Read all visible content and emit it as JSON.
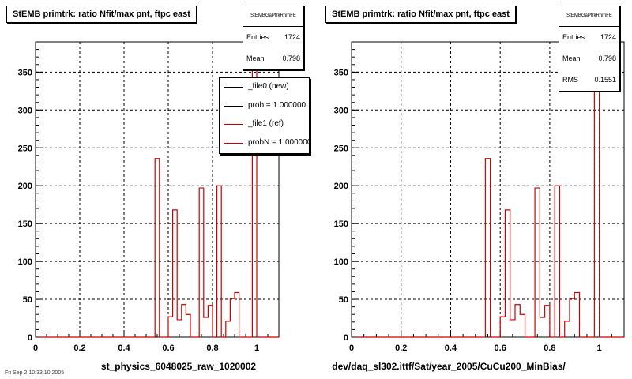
{
  "chart_data": [
    {
      "type": "bar",
      "title": "StEMB primtrk: ratio Nfit/max pnt, ftpc east",
      "xlabel": "st_physics_6048025_raw_1020002",
      "ylabel": "",
      "xlim": [
        0,
        1.1
      ],
      "ylim": [
        0,
        390
      ],
      "x_ticks": [
        "0",
        "0.2",
        "0.4",
        "0.6",
        "0.8",
        "1"
      ],
      "y_ticks": [
        "0",
        "50",
        "100",
        "150",
        "200",
        "250",
        "300",
        "350"
      ],
      "grid": true,
      "bin_width": 0.02,
      "series": [
        {
          "name": "_file1 (ref)",
          "color": "#cc0000",
          "x": [
            0.55,
            0.57,
            0.59,
            0.61,
            0.63,
            0.65,
            0.67,
            0.69,
            0.71,
            0.73,
            0.75,
            0.77,
            0.79,
            0.81,
            0.83,
            0.85,
            0.87,
            0.89,
            0.91,
            0.93,
            0.95,
            0.97,
            0.99
          ],
          "values": [
            236,
            0,
            0,
            27,
            168,
            23,
            43,
            30,
            0,
            0,
            197,
            26,
            42,
            0,
            200,
            0,
            21,
            51,
            59,
            0,
            0,
            0,
            370
          ]
        }
      ],
      "stats": {
        "name": "StEMBGaPtrkRnmFE",
        "rows": [
          {
            "label": "Entries",
            "value": "1724"
          },
          {
            "label": "Mean",
            "value": "0.798"
          }
        ]
      },
      "legend": [
        {
          "label": "_file0 (new)",
          "color": "#000000"
        },
        {
          "label": "prob = 1.000000",
          "color": "#000000"
        },
        {
          "label": "_file1 (ref)",
          "color": "#cc0000"
        },
        {
          "label": "probN = 1.000000",
          "color": "#cc0000"
        }
      ]
    },
    {
      "type": "bar",
      "title": "StEMB primtrk: ratio Nfit/max pnt, ftpc east",
      "xlabel": "dev/daq_sl302.ittf/Sat/year_2005/CuCu200_MinBias/",
      "ylabel": "",
      "xlim": [
        0,
        1.1
      ],
      "ylim": [
        0,
        390
      ],
      "x_ticks": [
        "0",
        "0.2",
        "0.4",
        "0.6",
        "0.8",
        "1"
      ],
      "y_ticks": [
        "0",
        "50",
        "100",
        "150",
        "200",
        "250",
        "300",
        "350"
      ],
      "grid": true,
      "bin_width": 0.02,
      "series": [
        {
          "name": "",
          "color": "#cc0000",
          "x": [
            0.55,
            0.57,
            0.59,
            0.61,
            0.63,
            0.65,
            0.67,
            0.69,
            0.71,
            0.73,
            0.75,
            0.77,
            0.79,
            0.81,
            0.83,
            0.85,
            0.87,
            0.89,
            0.91,
            0.93,
            0.95,
            0.97,
            0.99
          ],
          "values": [
            236,
            0,
            0,
            27,
            168,
            23,
            43,
            30,
            0,
            0,
            197,
            26,
            42,
            0,
            200,
            0,
            21,
            51,
            59,
            0,
            0,
            0,
            370
          ]
        }
      ],
      "stats": {
        "name": "StEMBGaPtrkRnmFE",
        "rows": [
          {
            "label": "Entries",
            "value": "1724"
          },
          {
            "label": "Mean",
            "value": "0.798"
          },
          {
            "label": "RMS",
            "value": "0.1551"
          }
        ]
      }
    }
  ],
  "footer": {
    "stamp": "Fri Sep 2 10:33:10 2005"
  }
}
